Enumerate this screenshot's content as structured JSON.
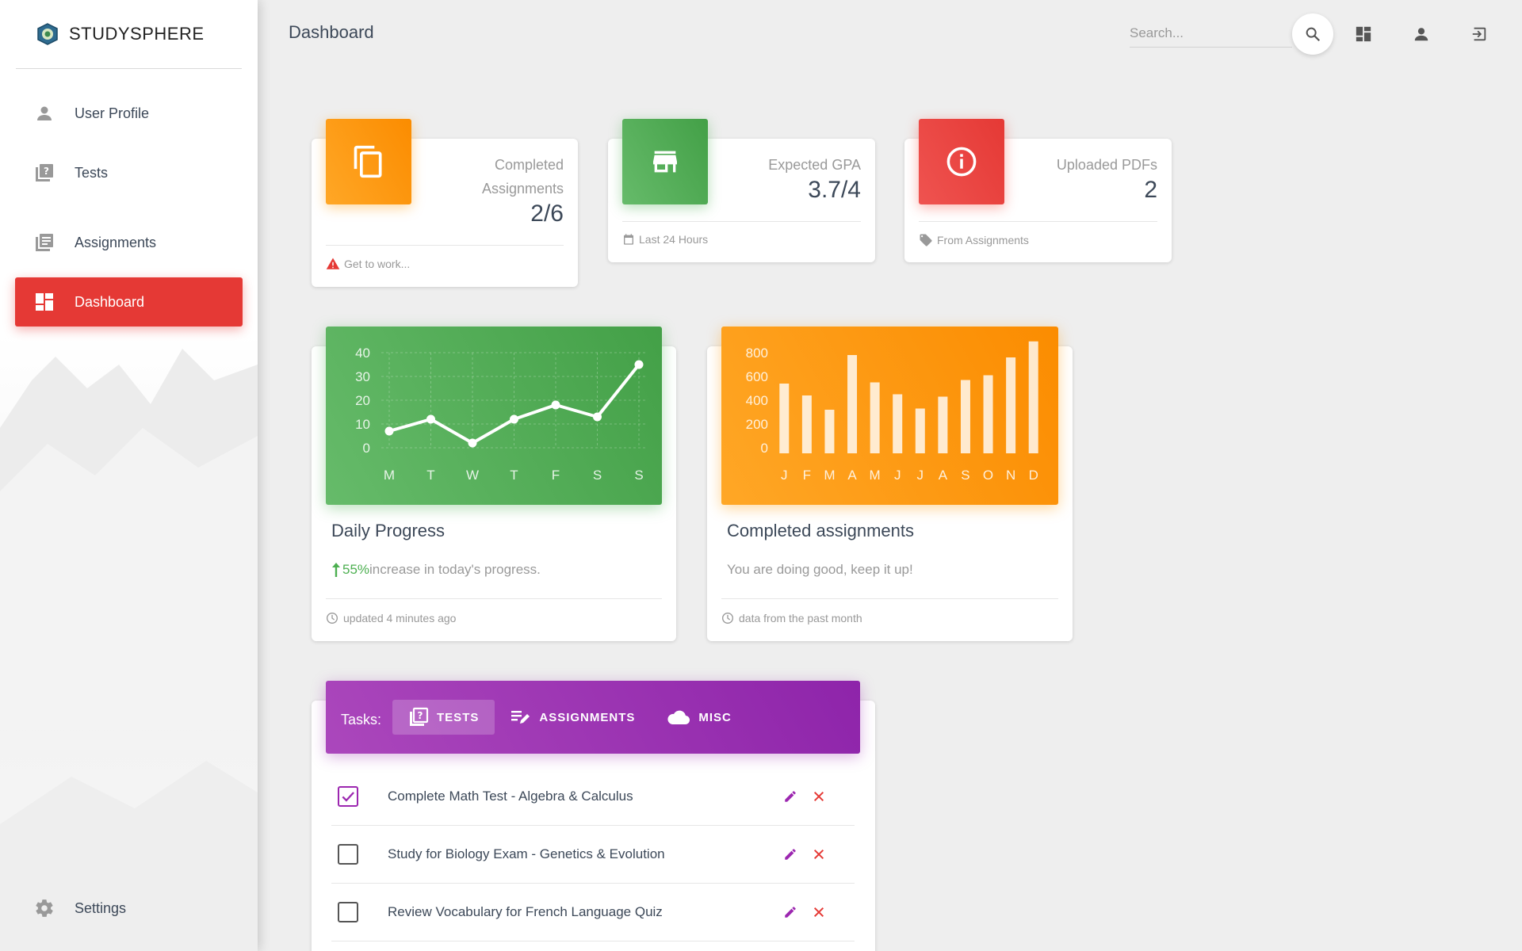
{
  "brand": {
    "name": "STUDYSPHERE"
  },
  "sidebar": {
    "items": [
      {
        "label": "User Profile",
        "icon": "person-icon"
      },
      {
        "label": "Tests",
        "icon": "quiz-icon"
      },
      {
        "label": "Assignments",
        "icon": "library-books-icon"
      },
      {
        "label": "Dashboard",
        "icon": "dashboard-icon",
        "active": true
      }
    ],
    "settings": {
      "label": "Settings",
      "icon": "gear-icon"
    }
  },
  "header": {
    "title": "Dashboard",
    "search_placeholder": "Search..."
  },
  "stats": [
    {
      "category": "Completed Assignments",
      "value": "2/6",
      "footer": "Get to work...",
      "color": "#fb8c00",
      "icon": "content-copy-icon",
      "footer_icon": "warning-icon"
    },
    {
      "category": "Expected GPA",
      "value": "3.7/4",
      "footer": "Last 24 Hours",
      "color": "#43a047",
      "icon": "store-icon",
      "footer_icon": "calendar-icon"
    },
    {
      "category": "Uploaded PDFs",
      "value": "2",
      "footer": "From Assignments",
      "color": "#e53935",
      "icon": "info-icon",
      "footer_icon": "tag-icon"
    }
  ],
  "charts": {
    "daily": {
      "title": "Daily Progress",
      "highlight": "55%",
      "desc": " increase in today's progress.",
      "footer": "updated 4 minutes ago"
    },
    "completed": {
      "title": "Completed assignments",
      "desc": "You are doing good, keep it up!",
      "footer": "data from the past month"
    }
  },
  "chart_data": [
    {
      "type": "line",
      "categories": [
        "M",
        "T",
        "W",
        "T",
        "F",
        "S",
        "S"
      ],
      "values": [
        7,
        12,
        2,
        12,
        18,
        13,
        35
      ],
      "yticks": [
        "0",
        "10",
        "20",
        "30",
        "40"
      ],
      "ylim": [
        0,
        40
      ],
      "grid": true
    },
    {
      "type": "bar",
      "categories": [
        "J",
        "F",
        "M",
        "A",
        "M",
        "J",
        "J",
        "A",
        "S",
        "O",
        "N",
        "D"
      ],
      "values": [
        540,
        440,
        320,
        780,
        550,
        450,
        330,
        430,
        570,
        610,
        760,
        895
      ],
      "yticks": [
        "0",
        "200",
        "400",
        "600",
        "800"
      ],
      "ylim": [
        0,
        800
      ],
      "grid": false
    }
  ],
  "tasks": {
    "label": "Tasks:",
    "tabs": [
      {
        "label": "TESTS",
        "icon": "quiz-icon",
        "active": true
      },
      {
        "label": "ASSIGNMENTS",
        "icon": "edit-note-icon"
      },
      {
        "label": "MISC",
        "icon": "cloud-icon"
      }
    ],
    "items": [
      {
        "text": "Complete Math Test - Algebra & Calculus",
        "checked": true
      },
      {
        "text": "Study for Biology Exam - Genetics & Evolution",
        "checked": false
      },
      {
        "text": "Review Vocabulary for French Language Quiz",
        "checked": false
      }
    ]
  }
}
